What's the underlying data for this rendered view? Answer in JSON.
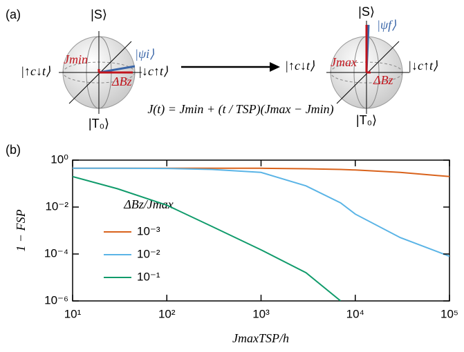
{
  "panel_a": {
    "label": "(a)",
    "state_s": "|S⟩",
    "state_t0": "|T₀⟩",
    "state_ud": "|↑c↓t⟩",
    "state_du": "|↓c↑t⟩",
    "j_min": "Jmin",
    "psi_i": "|ψi⟩",
    "delta_b": "ΔBz",
    "state_s_right": "|S⟩",
    "state_t0_right": "|T₀⟩",
    "state_ud_right": "|↑c↓t⟩",
    "state_du_right": "|↓c↑t⟩",
    "j_max": "Jmax",
    "psi_f": "|ψf⟩",
    "delta_b_right": "ΔBz",
    "formula": "J(t) = Jmin + (t / TSP)(Jmax − Jmin)"
  },
  "chart_data": {
    "type": "line",
    "panel_label": "(b)",
    "x_label": "JmaxTSP/h",
    "y_label": "1 − FSP",
    "legend_title": "ΔBz/Jmax",
    "legend": "left",
    "log_x": true,
    "log_y": true,
    "x": [
      10,
      30,
      100,
      300,
      1000,
      3000,
      7000,
      10000,
      30000,
      100000
    ],
    "series": [
      {
        "name": "10⁻³",
        "color": "#d9621b",
        "values": [
          0.45,
          0.45,
          0.45,
          0.45,
          0.45,
          0.43,
          0.4,
          0.38,
          0.3,
          0.2
        ]
      },
      {
        "name": "10⁻²",
        "color": "#5ab4e6",
        "values": [
          0.45,
          0.45,
          0.44,
          0.4,
          0.3,
          0.08,
          0.015,
          0.005,
          0.0005,
          8e-05
        ]
      },
      {
        "name": "10⁻¹",
        "color": "#109b6b",
        "values": [
          0.2,
          0.06,
          0.012,
          0.0015,
          0.00015,
          1.6e-05,
          1e-06,
          null,
          null,
          null
        ]
      }
    ],
    "xlim": [
      10,
      100000
    ],
    "xticks": [
      {
        "value": 10,
        "label": "10¹"
      },
      {
        "value": 100,
        "label": "10²"
      },
      {
        "value": 1000,
        "label": "10³"
      },
      {
        "value": 10000,
        "label": "10⁴"
      },
      {
        "value": 100000,
        "label": "10⁵"
      }
    ],
    "ylim": [
      1e-06,
      1
    ],
    "yticks": [
      {
        "value": 1e-06,
        "label": "10⁻⁶"
      },
      {
        "value": 0.0001,
        "label": "10⁻⁴"
      },
      {
        "value": 0.01,
        "label": "10⁻²"
      },
      {
        "value": 1,
        "label": "10⁰"
      }
    ]
  }
}
